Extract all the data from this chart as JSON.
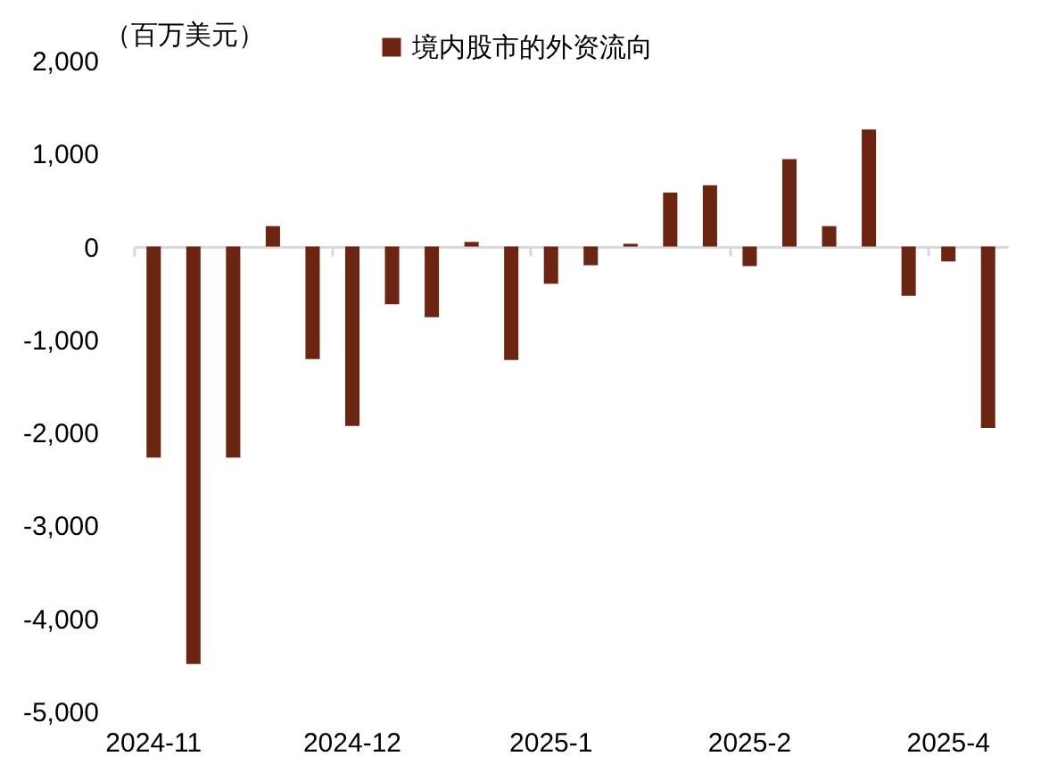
{
  "chart_data": {
    "type": "bar",
    "ylabel": "（百万美元）",
    "categories": [
      "2024-11",
      null,
      null,
      null,
      null,
      "2024-12",
      null,
      null,
      null,
      null,
      "2025-1",
      null,
      null,
      null,
      null,
      "2025-2",
      null,
      null,
      null,
      null,
      "2025-4",
      null
    ],
    "series": [
      {
        "name": "境内股市的外资流向",
        "color": "#6b2510",
        "values": [
          -2270,
          -4490,
          -2270,
          220,
          -1210,
          -1930,
          -620,
          -760,
          50,
          -1220,
          -400,
          -200,
          30,
          580,
          660,
          -210,
          940,
          220,
          1260,
          -530,
          -160,
          -1950
        ]
      }
    ],
    "ylim": [
      -5000,
      2000
    ],
    "yticks": [
      {
        "value": -5000,
        "label": "-5,000"
      },
      {
        "value": -4000,
        "label": "-4,000"
      },
      {
        "value": -3000,
        "label": "-3,000"
      },
      {
        "value": -2000,
        "label": "-2,000"
      },
      {
        "value": -1000,
        "label": "-1,000"
      },
      0,
      {
        "value": 1000,
        "label": "1,000"
      },
      {
        "value": 2000,
        "label": "2,000"
      }
    ],
    "legend": "top"
  }
}
